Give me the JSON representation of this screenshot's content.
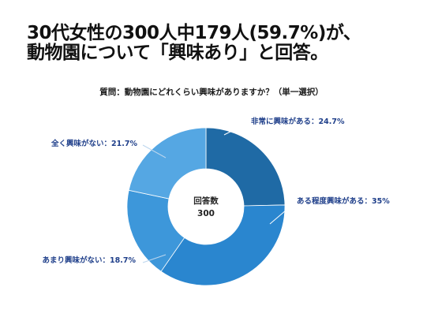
{
  "header": {
    "title_line1": "30代女性の300人中179人(59.7%)が、",
    "title_line2": "動物園について「興味あり」と回答。"
  },
  "chart_data": {
    "type": "donut",
    "title": "質問：動物園にどれくらい興味がありますか？（単一選択）",
    "center_label": "回答数",
    "center_value": "300",
    "slices": [
      {
        "label": "非常に興味がある：24.7%",
        "value": 24.7,
        "color": "#1f6aa5"
      },
      {
        "label": "ある程度興味がある：35%",
        "value": 35,
        "color": "#2a86cf"
      },
      {
        "label": "あまり興味がない：18.7%",
        "value": 18.7,
        "color": "#3d97da"
      },
      {
        "label": "全く興味がない：21.7%",
        "value": 21.7,
        "color": "#55a7e3"
      }
    ],
    "label_color": "#1f3f8a",
    "leader_color": "#ffffff"
  }
}
